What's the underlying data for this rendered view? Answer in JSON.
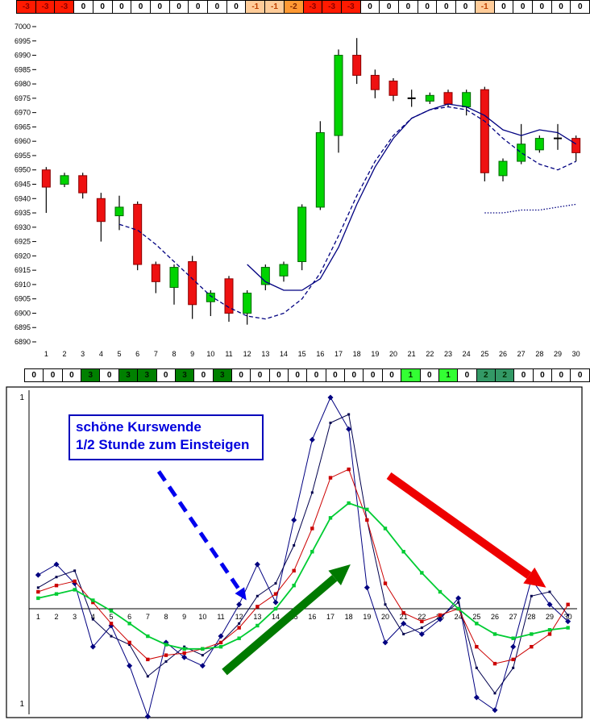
{
  "strips": {
    "top": {
      "values": [
        -3,
        -3,
        -3,
        0,
        0,
        0,
        0,
        0,
        0,
        0,
        0,
        0,
        -1,
        -1,
        -2,
        -3,
        -3,
        -3,
        0,
        0,
        0,
        0,
        0,
        0,
        -1,
        0,
        0,
        0,
        0,
        0
      ]
    },
    "mid": {
      "values": [
        0,
        0,
        0,
        3,
        0,
        3,
        3,
        0,
        3,
        0,
        3,
        0,
        0,
        0,
        0,
        0,
        0,
        0,
        0,
        0,
        1,
        0,
        1,
        0,
        2,
        2,
        0,
        0,
        0,
        0
      ]
    },
    "styles": {
      "-3": {
        "bg": "#ff1a00",
        "fg": "#8b0000"
      },
      "-2": {
        "bg": "#ff9933",
        "fg": "#7f2600"
      },
      "-1": {
        "bg": "#ffcc99",
        "fg": "#bf4000"
      },
      "0": {
        "bg": "#ffffff",
        "fg": "#000000"
      },
      "1": {
        "bg": "#33ff33",
        "fg": "#003300"
      },
      "2": {
        "bg": "#339966",
        "fg": "#002b00"
      },
      "3": {
        "bg": "#008000",
        "fg": "#001a00"
      }
    }
  },
  "chart_data": [
    {
      "type": "candlestick",
      "title": "",
      "xlabel": "",
      "ylabel": "",
      "ylim": [
        6890,
        7000
      ],
      "ytick_step": 5,
      "yticks": [
        "7000",
        "6995",
        "6990",
        "6985",
        "6980",
        "6975",
        "6970",
        "6965",
        "6960",
        "6955",
        "6950",
        "6945",
        "6940",
        "6935",
        "6930",
        "6925",
        "6920",
        "6915",
        "6910",
        "6905",
        "6900",
        "6895",
        "6890"
      ],
      "x": [
        1,
        2,
        3,
        4,
        5,
        6,
        7,
        8,
        9,
        10,
        11,
        12,
        13,
        14,
        15,
        16,
        17,
        18,
        19,
        20,
        21,
        22,
        23,
        24,
        25,
        26,
        27,
        28,
        29,
        30
      ],
      "xticklabels": [
        "1",
        "2",
        "3",
        "4",
        "5",
        "6",
        "7",
        "8",
        "9",
        "10",
        "11",
        "12",
        "13",
        "14",
        "15",
        "16",
        "17",
        "18",
        "19",
        "20",
        "21",
        "22",
        "23",
        "24",
        "25",
        "26",
        "27",
        "28",
        "29",
        "30"
      ],
      "colors": {
        "up": "#00d400",
        "up_stroke": "#006600",
        "down": "#ee1111",
        "down_stroke": "#8b0000",
        "wick": "#000000"
      },
      "candles": [
        [
          6950,
          6951,
          6935,
          6944
        ],
        [
          6945,
          6949,
          6944,
          6948
        ],
        [
          6948,
          6949,
          6940,
          6942
        ],
        [
          6940,
          6942,
          6925,
          6932
        ],
        [
          6934,
          6941,
          6929,
          6937
        ],
        [
          6938,
          6939,
          6915,
          6917
        ],
        [
          6917,
          6918,
          6907,
          6911
        ],
        [
          6909,
          6917,
          6903,
          6916
        ],
        [
          6918,
          6920,
          6898,
          6903
        ],
        [
          6904,
          6908,
          6899,
          6907
        ],
        [
          6912,
          6913,
          6897,
          6900
        ],
        [
          6900,
          6908,
          6896,
          6907
        ],
        [
          6910,
          6917,
          6908,
          6916
        ],
        [
          6913,
          6918,
          6911,
          6917
        ],
        [
          6918,
          6938,
          6915,
          6937
        ],
        [
          6937,
          6967,
          6936,
          6963
        ],
        [
          6962,
          6992,
          6956,
          6990
        ],
        [
          6990,
          6996,
          6980,
          6983
        ],
        [
          6983,
          6985,
          6975,
          6978
        ],
        [
          6981,
          6982,
          6974,
          6976
        ],
        [
          6975,
          6978,
          6972,
          6975
        ],
        [
          6974,
          6977,
          6973,
          6976
        ],
        [
          6977,
          6978,
          6972,
          6973
        ],
        [
          6972,
          6978,
          6969,
          6977
        ],
        [
          6978,
          6979,
          6946,
          6949
        ],
        [
          6948,
          6954,
          6946,
          6953
        ],
        [
          6953,
          6966,
          6952,
          6959
        ],
        [
          6957,
          6962,
          6956,
          6961
        ],
        [
          6961,
          6966,
          6957,
          6961
        ],
        [
          6961,
          6962,
          6953,
          6956
        ]
      ],
      "series": [
        {
          "name": "ma-solid",
          "style": "solid",
          "color": "#000080",
          "points": [
            [
              12,
              6917
            ],
            [
              13,
              6911
            ],
            [
              14,
              6908
            ],
            [
              15,
              6908
            ],
            [
              16,
              6912
            ],
            [
              17,
              6923
            ],
            [
              18,
              6938
            ],
            [
              19,
              6951
            ],
            [
              20,
              6961
            ],
            [
              21,
              6968
            ],
            [
              22,
              6971
            ],
            [
              23,
              6973
            ],
            [
              24,
              6972
            ],
            [
              25,
              6969
            ],
            [
              26,
              6964
            ],
            [
              27,
              6962
            ],
            [
              28,
              6964
            ],
            [
              29,
              6963
            ],
            [
              30,
              6959
            ]
          ]
        },
        {
          "name": "ma-dashed",
          "style": "dashed",
          "color": "#000080",
          "points": [
            [
              5,
              6931
            ],
            [
              6,
              6929
            ],
            [
              7,
              6924
            ],
            [
              8,
              6918
            ],
            [
              9,
              6912
            ],
            [
              10,
              6906
            ],
            [
              11,
              6902
            ],
            [
              12,
              6899
            ],
            [
              13,
              6898
            ],
            [
              14,
              6900
            ],
            [
              15,
              6905
            ],
            [
              16,
              6914
            ],
            [
              17,
              6927
            ],
            [
              18,
              6941
            ],
            [
              19,
              6953
            ],
            [
              20,
              6962
            ],
            [
              21,
              6968
            ],
            [
              22,
              6971
            ],
            [
              23,
              6972
            ],
            [
              24,
              6971
            ],
            [
              25,
              6967
            ],
            [
              26,
              6961
            ],
            [
              27,
              6956
            ],
            [
              28,
              6952
            ],
            [
              29,
              6950
            ],
            [
              30,
              6953
            ]
          ]
        },
        {
          "name": "ma-dotted-short",
          "style": "dotted",
          "color": "#000080",
          "points": [
            [
              25,
              6935
            ],
            [
              26,
              6935
            ],
            [
              27,
              6936
            ],
            [
              28,
              6936
            ],
            [
              29,
              6937
            ],
            [
              30,
              6938
            ]
          ]
        }
      ]
    },
    {
      "type": "line",
      "title": "",
      "xlabel": "",
      "ylabel": "",
      "ylim": [
        -0.55,
        1.05
      ],
      "yticks": [
        {
          "v": 1.0,
          "label": "1"
        },
        {
          "v": -0.45,
          "label": "1"
        }
      ],
      "x": [
        1,
        2,
        3,
        4,
        5,
        6,
        7,
        8,
        9,
        10,
        11,
        12,
        13,
        14,
        15,
        16,
        17,
        18,
        19,
        20,
        21,
        22,
        23,
        24,
        25,
        26,
        27,
        28,
        29,
        30
      ],
      "xticklabels": [
        "1",
        "2",
        "3",
        "4",
        "5",
        "6",
        "7",
        "8",
        "9",
        "10",
        "11",
        "12",
        "13",
        "14",
        "15",
        "16",
        "17",
        "18",
        "19",
        "20",
        "21",
        "22",
        "23",
        "24",
        "25",
        "26",
        "27",
        "28",
        "29",
        "30"
      ],
      "series": [
        {
          "name": "fast-navy-diamond",
          "color": "#000080",
          "marker": "diamond",
          "width": 1,
          "values": [
            0.16,
            0.21,
            0.12,
            -0.18,
            -0.08,
            -0.27,
            -0.51,
            -0.16,
            -0.23,
            -0.27,
            -0.13,
            0.02,
            0.21,
            0.03,
            0.42,
            0.8,
            1.0,
            0.85,
            0.1,
            -0.16,
            -0.07,
            -0.12,
            -0.05,
            0.05,
            -0.42,
            -0.48,
            -0.18,
            0.14,
            0.02,
            -0.06
          ]
        },
        {
          "name": "second-navy-line",
          "color": "#00004d",
          "marker": "square-small",
          "width": 1,
          "values": [
            0.1,
            0.15,
            0.18,
            -0.05,
            -0.13,
            -0.17,
            -0.32,
            -0.25,
            -0.18,
            -0.22,
            -0.16,
            -0.07,
            0.06,
            0.12,
            0.3,
            0.55,
            0.88,
            0.92,
            0.42,
            0.02,
            -0.12,
            -0.09,
            -0.04,
            0.03,
            -0.28,
            -0.4,
            -0.28,
            0.06,
            0.08,
            -0.03
          ]
        },
        {
          "name": "red-signal-line",
          "color": "#cc0000",
          "marker": "square",
          "width": 1,
          "values": [
            0.08,
            0.11,
            0.13,
            0.03,
            -0.07,
            -0.16,
            -0.24,
            -0.22,
            -0.21,
            -0.19,
            -0.16,
            -0.09,
            0.01,
            0.07,
            0.18,
            0.38,
            0.62,
            0.66,
            0.42,
            0.12,
            -0.02,
            -0.06,
            -0.03,
            0.0,
            -0.18,
            -0.26,
            -0.24,
            -0.18,
            -0.12,
            0.02
          ]
        },
        {
          "name": "green-slow-line",
          "color": "#00cc33",
          "marker": "square",
          "width": 1.8,
          "values": [
            0.05,
            0.07,
            0.09,
            0.04,
            -0.01,
            -0.07,
            -0.13,
            -0.17,
            -0.19,
            -0.19,
            -0.18,
            -0.14,
            -0.08,
            0.0,
            0.11,
            0.27,
            0.43,
            0.5,
            0.47,
            0.38,
            0.27,
            0.17,
            0.08,
            0.0,
            -0.07,
            -0.12,
            -0.14,
            -0.12,
            -0.1,
            -0.09
          ]
        }
      ],
      "annotations": {
        "note_line1": "schöne Kurswende",
        "note_line2": "1/2 Stunde zum Einsteigen",
        "text_color": "#0000dd",
        "border_color": "#0000bb",
        "arrows": [
          {
            "name": "blue-dashed-arrow",
            "color": "#0000ee",
            "dashed": true,
            "width": 5,
            "head_len": 15,
            "head_width": 14,
            "from": [
              7.6,
              0.65
            ],
            "to": [
              12.4,
              0.04
            ]
          },
          {
            "name": "green-up-arrow",
            "color": "#007a00",
            "dashed": false,
            "width": 10,
            "head_len": 26,
            "head_width": 24,
            "from": [
              11.2,
              -0.3
            ],
            "to": [
              18.1,
              0.21
            ]
          },
          {
            "name": "red-down-arrow",
            "color": "#ee0000",
            "dashed": false,
            "width": 10,
            "head_len": 26,
            "head_width": 24,
            "from": [
              20.2,
              0.63
            ],
            "to": [
              28.8,
              0.1
            ]
          }
        ]
      }
    }
  ]
}
